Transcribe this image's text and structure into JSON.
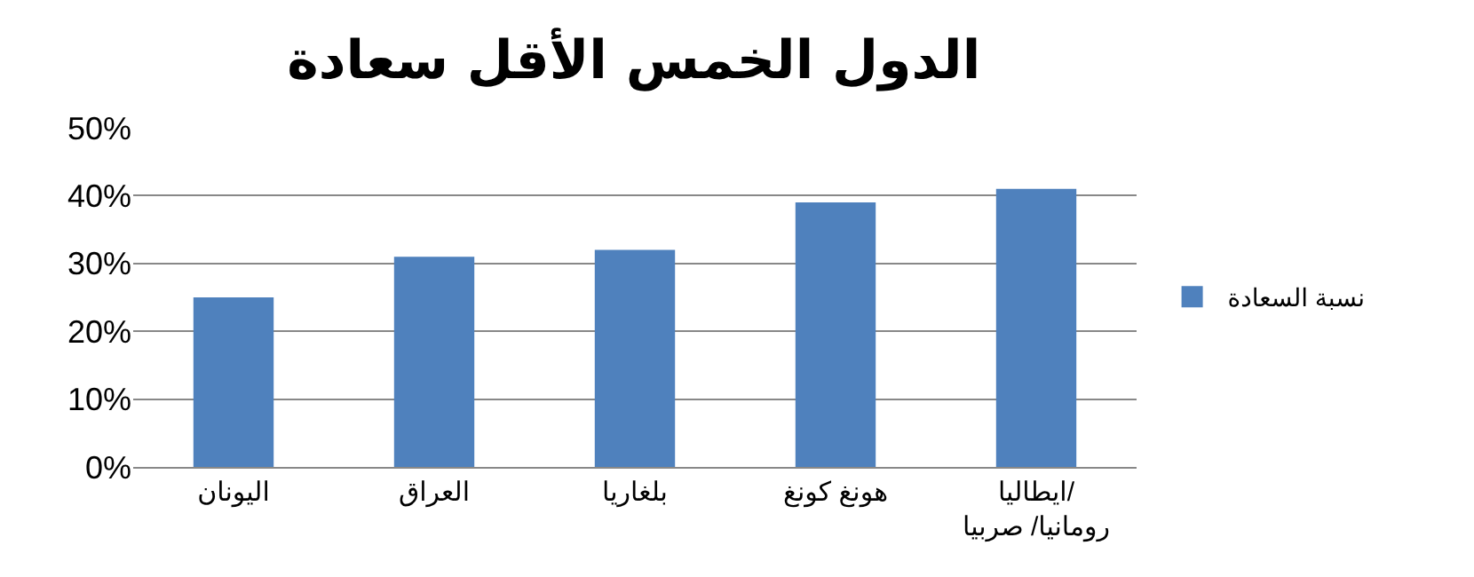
{
  "chart_data": {
    "type": "bar",
    "title": "الدول الخمس الأقل سعادة",
    "categories": [
      "اليونان",
      "العراق",
      "بلغاريا",
      "هونغ كونغ",
      "ايطاليا/ رومانيا/ صربيا"
    ],
    "series": [
      {
        "name": "نسبة السعادة",
        "color": "#4f81bd",
        "values": [
          25,
          31,
          32,
          39,
          41
        ]
      }
    ],
    "ylim": [
      0,
      50
    ],
    "yticks": [
      {
        "value": 0,
        "label": "0%"
      },
      {
        "value": 10,
        "label": "10%"
      },
      {
        "value": 20,
        "label": "20%"
      },
      {
        "value": 30,
        "label": "30%"
      },
      {
        "value": 40,
        "label": "40%"
      },
      {
        "value": 50,
        "label": "50%"
      }
    ],
    "grid": "y",
    "legend": "right"
  }
}
